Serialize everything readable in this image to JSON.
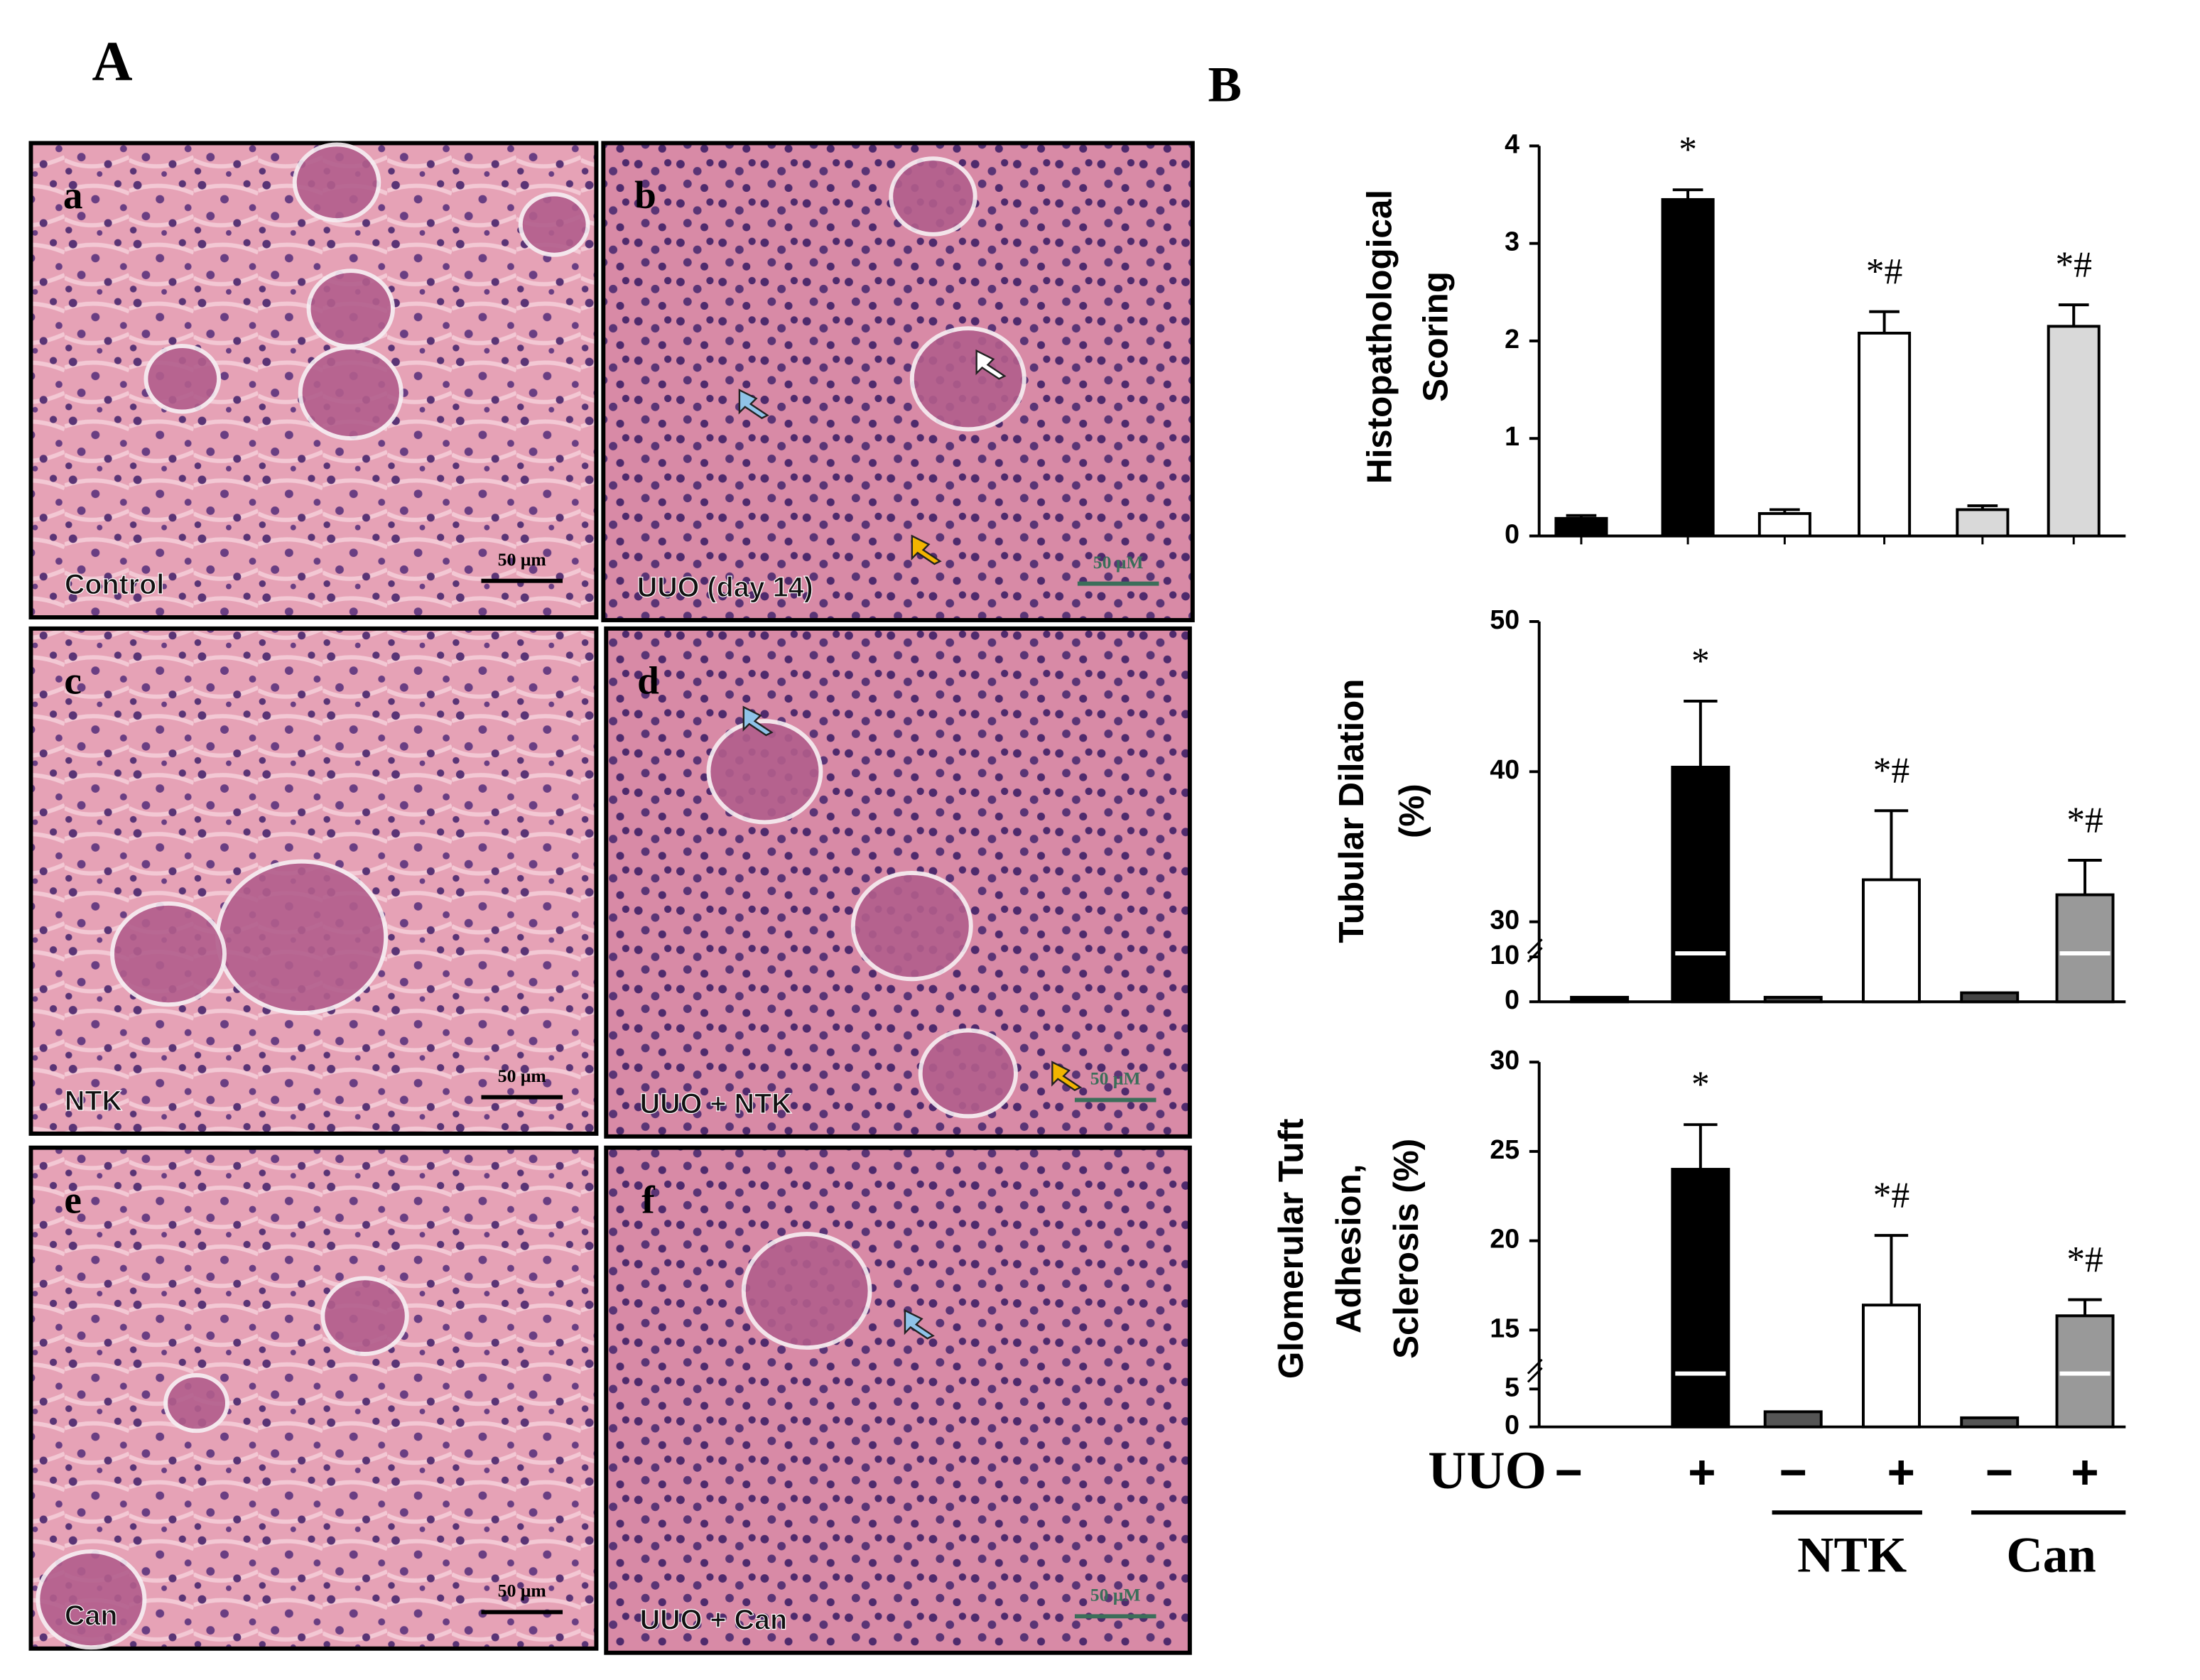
{
  "panel_a": {
    "label": "A",
    "panels": [
      {
        "letter": "a",
        "caption": "Control",
        "scale": "50 μm"
      },
      {
        "letter": "b",
        "caption": "UUO (day 14)",
        "scale": "50 μM"
      },
      {
        "letter": "c",
        "caption": "NTK",
        "scale": "50 μm"
      },
      {
        "letter": "d",
        "caption": "UUO + NTK",
        "scale": "50 μM"
      },
      {
        "letter": "e",
        "caption": "Can",
        "scale": "50 μm"
      },
      {
        "letter": "f",
        "caption": "UUO + Can",
        "scale": "50 μM"
      }
    ]
  },
  "panel_b": {
    "label": "B",
    "row_label": "UUO",
    "signs": [
      "−",
      "+",
      "−",
      "+",
      "−",
      "+"
    ],
    "groups": [
      "NTK",
      "Can"
    ]
  },
  "chart_data": [
    {
      "type": "bar",
      "y_title": [
        "Histopathological",
        "Scoring"
      ],
      "values": [
        0.18,
        3.45,
        0.23,
        2.08,
        0.27,
        2.15
      ],
      "errors": [
        0.03,
        0.1,
        0.04,
        0.22,
        0.04,
        0.22
      ],
      "colors": [
        "#000000",
        "#000000",
        "#ffffff",
        "#ffffff",
        "#d9d9d9",
        "#d9d9d9"
      ],
      "annotations": [
        null,
        "*",
        null,
        "*#",
        null,
        "*#"
      ],
      "ylim": [
        0,
        4
      ],
      "yticks": [
        0,
        1,
        2,
        3,
        4
      ]
    },
    {
      "type": "bar",
      "y_title": [
        "Tubular  Dilation",
        "(%)"
      ],
      "values": [
        1,
        40.3,
        1,
        32.8,
        2,
        31.8
      ],
      "errors": [
        null,
        4.4,
        null,
        4.6,
        null,
        2.3
      ],
      "colors": [
        "#000000",
        "#000000",
        "#444444",
        "#ffffff",
        "#444444",
        "#999999"
      ],
      "annotations": [
        null,
        "*",
        null,
        "*#",
        null,
        "*#"
      ],
      "ylim": [
        0,
        50
      ],
      "yticks": [
        0,
        10,
        30,
        40,
        50
      ],
      "axis_break": [
        10,
        30
      ]
    },
    {
      "type": "bar",
      "y_title": [
        "Glomerular Tuft",
        "Adhesion,",
        "Sclerosis (%)"
      ],
      "values": [
        null,
        24.0,
        2,
        16.4,
        1.2,
        15.8
      ],
      "errors": [
        null,
        2.5,
        null,
        3.9,
        null,
        0.9
      ],
      "colors": [
        "#000000",
        "#000000",
        "#555555",
        "#ffffff",
        "#555555",
        "#999999"
      ],
      "annotations": [
        null,
        "*",
        null,
        "*#",
        null,
        "*#"
      ],
      "ylim": [
        0,
        30
      ],
      "yticks": [
        0,
        5,
        15,
        20,
        25,
        30
      ],
      "axis_break": [
        5,
        15
      ]
    }
  ]
}
